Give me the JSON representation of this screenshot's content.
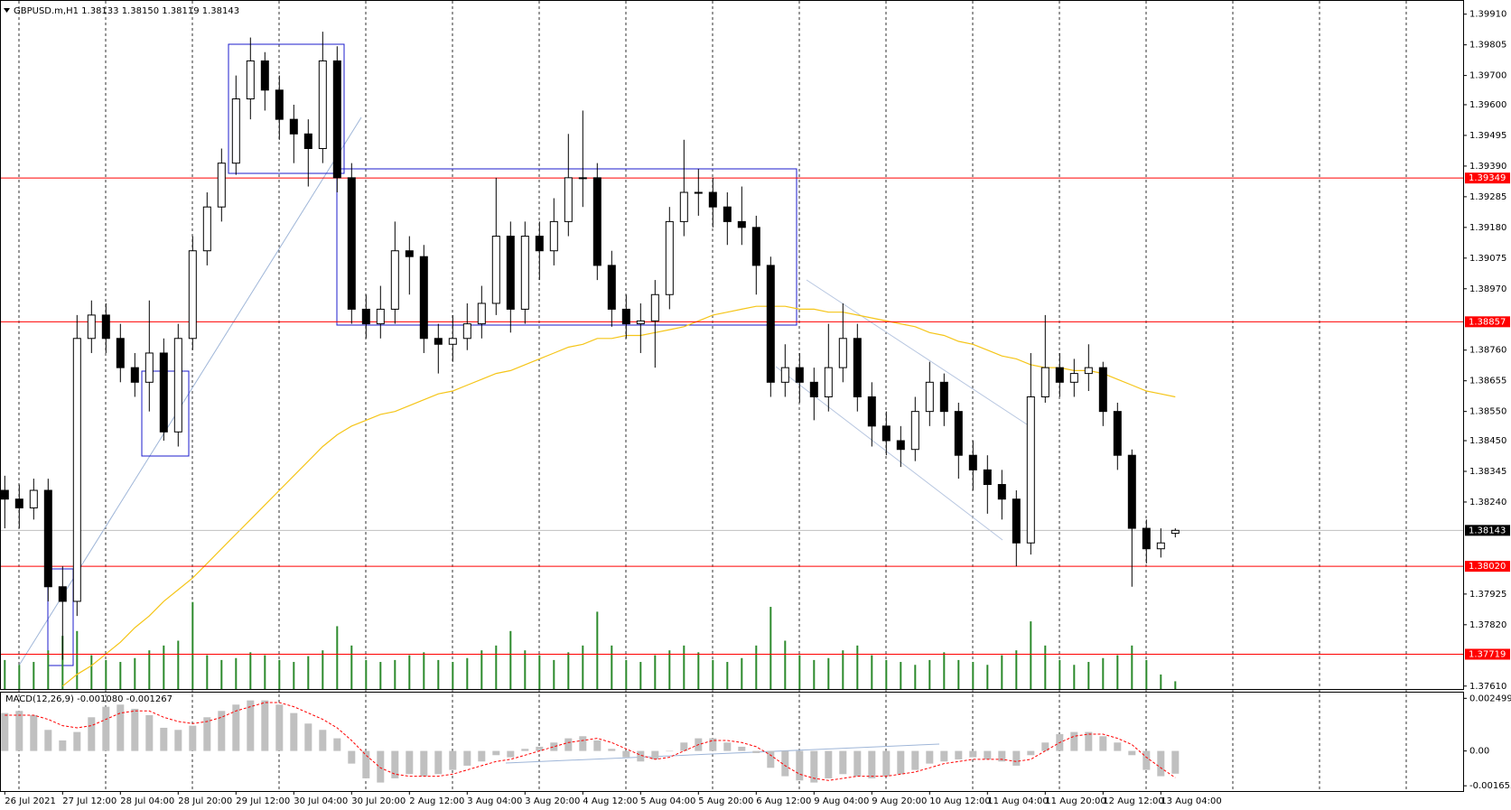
{
  "chart_data": [
    {
      "type": "candlestick",
      "title": "GBPUSD.m,H1  1.38133 1.38150 1.38119 1.38143",
      "ohlc": [
        [
          1.3828,
          1.3833,
          1.3815,
          1.3825
        ],
        [
          1.3825,
          1.383,
          1.3815,
          1.3822
        ],
        [
          1.3822,
          1.3832,
          1.3818,
          1.3828
        ],
        [
          1.3828,
          1.3832,
          1.379,
          1.3795
        ],
        [
          1.3795,
          1.3802,
          1.377,
          1.379
        ],
        [
          1.379,
          1.3888,
          1.3785,
          1.388
        ],
        [
          1.388,
          1.3893,
          1.3875,
          1.3888
        ],
        [
          1.3888,
          1.3892,
          1.3875,
          1.388
        ],
        [
          1.388,
          1.3885,
          1.3865,
          1.387
        ],
        [
          1.387,
          1.3875,
          1.386,
          1.3865
        ],
        [
          1.3865,
          1.3893,
          1.3855,
          1.3875
        ],
        [
          1.3875,
          1.388,
          1.3845,
          1.3848
        ],
        [
          1.3848,
          1.3885,
          1.3843,
          1.388
        ],
        [
          1.388,
          1.3915,
          1.3876,
          1.391
        ],
        [
          1.391,
          1.393,
          1.3905,
          1.3925
        ],
        [
          1.3925,
          1.3945,
          1.392,
          1.394
        ],
        [
          1.394,
          1.397,
          1.3936,
          1.3962
        ],
        [
          1.3962,
          1.3983,
          1.3955,
          1.3975
        ],
        [
          1.3975,
          1.3978,
          1.3958,
          1.3965
        ],
        [
          1.3965,
          1.397,
          1.3948,
          1.3955
        ],
        [
          1.3955,
          1.396,
          1.394,
          1.395
        ],
        [
          1.395,
          1.3955,
          1.3932,
          1.3945
        ],
        [
          1.3945,
          1.3985,
          1.394,
          1.3975
        ],
        [
          1.3975,
          1.398,
          1.393,
          1.3935
        ],
        [
          1.3935,
          1.394,
          1.3885,
          1.389
        ],
        [
          1.389,
          1.3895,
          1.388,
          1.3885
        ],
        [
          1.3885,
          1.3898,
          1.388,
          1.389
        ],
        [
          1.389,
          1.392,
          1.3885,
          1.391
        ],
        [
          1.391,
          1.3915,
          1.3895,
          1.3908
        ],
        [
          1.3908,
          1.3912,
          1.3875,
          1.388
        ],
        [
          1.388,
          1.3885,
          1.3868,
          1.3878
        ],
        [
          1.3878,
          1.3888,
          1.3872,
          1.388
        ],
        [
          1.388,
          1.3892,
          1.3876,
          1.3885
        ],
        [
          1.3885,
          1.3898,
          1.388,
          1.3892
        ],
        [
          1.3892,
          1.3935,
          1.3888,
          1.3915
        ],
        [
          1.3915,
          1.392,
          1.3882,
          1.389
        ],
        [
          1.389,
          1.392,
          1.3885,
          1.3915
        ],
        [
          1.3915,
          1.392,
          1.39,
          1.391
        ],
        [
          1.391,
          1.3928,
          1.3905,
          1.392
        ],
        [
          1.392,
          1.395,
          1.3915,
          1.3935
        ],
        [
          1.3935,
          1.3958,
          1.3925,
          1.3935
        ],
        [
          1.3935,
          1.394,
          1.39,
          1.3905
        ],
        [
          1.3905,
          1.391,
          1.3884,
          1.389
        ],
        [
          1.389,
          1.3895,
          1.388,
          1.3885
        ],
        [
          1.3885,
          1.3892,
          1.3875,
          1.3886
        ],
        [
          1.3886,
          1.39,
          1.387,
          1.3895
        ],
        [
          1.3895,
          1.3925,
          1.389,
          1.392
        ],
        [
          1.392,
          1.3948,
          1.3915,
          1.393
        ],
        [
          1.393,
          1.3938,
          1.3922,
          1.393
        ],
        [
          1.393,
          1.3935,
          1.3918,
          1.3925
        ],
        [
          1.3925,
          1.393,
          1.3912,
          1.392
        ],
        [
          1.392,
          1.3932,
          1.3912,
          1.3918
        ],
        [
          1.3918,
          1.3922,
          1.3895,
          1.3905
        ],
        [
          1.3905,
          1.3908,
          1.386,
          1.3865
        ],
        [
          1.3865,
          1.3878,
          1.386,
          1.387
        ],
        [
          1.387,
          1.3875,
          1.3858,
          1.3865
        ],
        [
          1.3865,
          1.387,
          1.3852,
          1.386
        ],
        [
          1.386,
          1.3885,
          1.3855,
          1.387
        ],
        [
          1.387,
          1.3892,
          1.3865,
          1.388
        ],
        [
          1.388,
          1.3885,
          1.3855,
          1.386
        ],
        [
          1.386,
          1.3865,
          1.3843,
          1.385
        ],
        [
          1.385,
          1.3855,
          1.384,
          1.3845
        ],
        [
          1.3845,
          1.385,
          1.3836,
          1.3842
        ],
        [
          1.3842,
          1.386,
          1.3838,
          1.3855
        ],
        [
          1.3855,
          1.3872,
          1.385,
          1.3865
        ],
        [
          1.3865,
          1.3868,
          1.385,
          1.3855
        ],
        [
          1.3855,
          1.3858,
          1.3832,
          1.384
        ],
        [
          1.384,
          1.3845,
          1.3828,
          1.3835
        ],
        [
          1.3835,
          1.384,
          1.382,
          1.383
        ],
        [
          1.383,
          1.3835,
          1.3818,
          1.3825
        ],
        [
          1.3825,
          1.3828,
          1.3802,
          1.381
        ],
        [
          1.381,
          1.3875,
          1.3806,
          1.386
        ],
        [
          1.386,
          1.3888,
          1.3858,
          1.387
        ],
        [
          1.387,
          1.3875,
          1.386,
          1.3865
        ],
        [
          1.3865,
          1.3873,
          1.386,
          1.3868
        ],
        [
          1.3868,
          1.3878,
          1.3862,
          1.387
        ],
        [
          1.387,
          1.3872,
          1.385,
          1.3855
        ],
        [
          1.3855,
          1.3858,
          1.3835,
          1.384
        ],
        [
          1.384,
          1.3842,
          1.3795,
          1.3815
        ],
        [
          1.3815,
          1.3818,
          1.3803,
          1.3808
        ],
        [
          1.3808,
          1.3815,
          1.3805,
          1.381
        ],
        [
          1.38133,
          1.3815,
          1.38119,
          1.38143
        ]
      ],
      "up_color": "#ffffff",
      "down_color": "#000000",
      "outline_color": "#000000",
      "ma": {
        "color": "#f5c518",
        "values": [
          null,
          null,
          null,
          null,
          1.3761,
          1.3765,
          1.3768,
          1.3772,
          1.3776,
          1.3781,
          1.3785,
          1.379,
          1.3794,
          1.3798,
          1.3803,
          1.3808,
          1.3813,
          1.3818,
          1.3823,
          1.3828,
          1.3833,
          1.3838,
          1.3843,
          1.3847,
          1.385,
          1.3852,
          1.3854,
          1.3855,
          1.3857,
          1.3859,
          1.3861,
          1.3862,
          1.3864,
          1.3866,
          1.3868,
          1.3869,
          1.3871,
          1.3873,
          1.3875,
          1.3877,
          1.3878,
          1.388,
          1.388,
          1.3881,
          1.3881,
          1.3882,
          1.3883,
          1.3884,
          1.3886,
          1.3888,
          1.3889,
          1.389,
          1.3891,
          1.3891,
          1.3891,
          1.389,
          1.389,
          1.3889,
          1.3889,
          1.3888,
          1.3887,
          1.3886,
          1.3885,
          1.3884,
          1.3882,
          1.3881,
          1.3879,
          1.3878,
          1.3876,
          1.3874,
          1.3873,
          1.3871,
          1.387,
          1.387,
          1.3869,
          1.3869,
          1.3868,
          1.3866,
          1.3864,
          1.3862,
          1.3861,
          1.386
        ]
      },
      "volume": {
        "color": "#2e8b2e",
        "values": [
          30,
          25,
          28,
          40,
          55,
          60,
          35,
          30,
          28,
          32,
          40,
          45,
          50,
          90,
          35,
          30,
          32,
          38,
          35,
          30,
          28,
          34,
          40,
          65,
          45,
          30,
          28,
          30,
          35,
          38,
          30,
          28,
          32,
          40,
          45,
          60,
          40,
          35,
          30,
          38,
          45,
          80,
          45,
          30,
          28,
          35,
          40,
          45,
          38,
          30,
          28,
          32,
          45,
          85,
          50,
          35,
          30,
          32,
          40,
          45,
          35,
          30,
          28,
          25,
          30,
          38,
          30,
          28,
          25,
          35,
          40,
          70,
          45,
          30,
          25,
          28,
          32,
          35,
          45,
          30,
          15,
          8
        ]
      },
      "ylim": [
        1.376,
        1.39943
      ],
      "yticks": [
        {
          "value": 1.3991,
          "label": "1.39910"
        },
        1.39805,
        {
          "value": 1.397,
          "label": "1.39700"
        },
        {
          "value": 1.396,
          "label": "1.39600"
        },
        1.39495,
        {
          "value": 1.3939,
          "label": "1.39390"
        },
        1.39285,
        {
          "value": 1.3918,
          "label": "1.39180"
        },
        1.39075,
        {
          "value": 1.3897,
          "label": "1.38970"
        },
        {
          "value": 1.3876,
          "label": "1.38760"
        },
        1.38655,
        {
          "value": 1.3855,
          "label": "1.38550"
        },
        {
          "value": 1.3845,
          "label": "1.38450"
        },
        1.38345,
        {
          "value": 1.3824,
          "label": "1.38240"
        },
        1.37925,
        {
          "value": 1.3782,
          "label": "1.37820"
        },
        {
          "value": 1.3761,
          "label": "1.37610"
        }
      ],
      "price_lines": [
        {
          "value": 1.39349,
          "color": "#ff0000"
        },
        {
          "value": 1.38857,
          "color": "#ff0000"
        },
        {
          "value": 1.3802,
          "label": "1.38020",
          "color": "#ff0000"
        },
        {
          "value": 1.37719,
          "color": "#ff0000"
        },
        {
          "value": 1.38143,
          "color": "#c0c0c0",
          "label_color": "#000000"
        }
      ],
      "xticks": [
        {
          "value": 0,
          "label": "26 Jul 2021"
        },
        {
          "value": 4,
          "label": "27 Jul 12:00"
        },
        {
          "value": 8,
          "label": "28 Jul 04:00"
        },
        {
          "value": 12,
          "label": "28 Jul 20:00"
        },
        {
          "value": 16,
          "label": "29 Jul 12:00"
        },
        {
          "value": 20,
          "label": "30 Jul 04:00"
        },
        {
          "value": 24,
          "label": "30 Jul 20:00"
        },
        {
          "value": 28,
          "label": "2 Aug 12:00"
        },
        {
          "value": 32,
          "label": "3 Aug 04:00"
        },
        {
          "value": 36,
          "label": "3 Aug 20:00"
        },
        {
          "value": 40,
          "label": "4 Aug 12:00"
        },
        {
          "value": 44,
          "label": "5 Aug 04:00"
        },
        {
          "value": 48,
          "label": "5 Aug 20:00"
        },
        {
          "value": 52,
          "label": "6 Aug 12:00"
        },
        {
          "value": 56,
          "label": "9 Aug 04:00"
        },
        {
          "value": 60,
          "label": "9 Aug 20:00"
        },
        {
          "value": 64,
          "label": "10 Aug 12:00"
        },
        {
          "value": 68,
          "label": "11 Aug 04:00"
        },
        {
          "value": 72,
          "label": "11 Aug 20:00"
        },
        {
          "value": 76,
          "label": "12 Aug 12:00"
        },
        {
          "value": 80,
          "label": "13 Aug 04:00"
        }
      ]
    },
    {
      "type": "macd",
      "title": "MACD(12,26,9) -0.001080 -0.001267",
      "histogram": {
        "color": "#c0c0c0",
        "values": [
          0.0018,
          0.0019,
          0.0017,
          0.001,
          0.0005,
          0.0009,
          0.0016,
          0.0021,
          0.0022,
          0.002,
          0.0017,
          0.0011,
          0.001,
          0.0012,
          0.0016,
          0.0019,
          0.0022,
          0.0024,
          0.0024,
          0.0022,
          0.0018,
          0.0013,
          0.001,
          0.0006,
          -0.0006,
          -0.0013,
          -0.0015,
          -0.0013,
          -0.0011,
          -0.0012,
          -0.0011,
          -0.0009,
          -0.0007,
          -0.0005,
          -0.0002,
          -0.0003,
          0.0001,
          0.0002,
          0.0004,
          0.0006,
          0.0007,
          0.0005,
          0.0001,
          -0.0003,
          -0.0005,
          -0.0004,
          0,
          0.0004,
          0.0006,
          0.0006,
          0.0004,
          0.0002,
          -0.0001,
          -0.0008,
          -0.0012,
          -0.0014,
          -0.0015,
          -0.0013,
          -0.0011,
          -0.0012,
          -0.0013,
          -0.0012,
          -0.0011,
          -0.0009,
          -0.0006,
          -0.0005,
          -0.0004,
          -0.0003,
          -0.0004,
          -0.0005,
          -0.0007,
          -0.0002,
          0.0004,
          0.0008,
          0.0009,
          0.0009,
          0.0007,
          0.0004,
          -0.0002,
          -0.0009,
          -0.0012,
          -0.00108
        ]
      },
      "signal": {
        "color": "#ff0000",
        "values": [
          0.0017,
          0.0017,
          0.0017,
          0.0015,
          0.0012,
          0.0011,
          0.0012,
          0.0015,
          0.0018,
          0.0019,
          0.0019,
          0.0016,
          0.0014,
          0.0013,
          0.0014,
          0.0016,
          0.0019,
          0.0021,
          0.0023,
          0.0023,
          0.0021,
          0.0018,
          0.0015,
          0.0011,
          0.0005,
          -0.0002,
          -0.0008,
          -0.0011,
          -0.0012,
          -0.0012,
          -0.0012,
          -0.0011,
          -0.0009,
          -0.0007,
          -0.0005,
          -0.0004,
          -0.0002,
          0,
          0.0002,
          0.0004,
          0.0005,
          0.0006,
          0.0004,
          0.0001,
          -0.0002,
          -0.0004,
          -0.0003,
          0,
          0.0003,
          0.0005,
          0.0005,
          0.0004,
          0.0002,
          -0.0002,
          -0.0007,
          -0.0011,
          -0.0013,
          -0.0014,
          -0.0013,
          -0.0012,
          -0.0012,
          -0.0012,
          -0.0011,
          -0.001,
          -0.0008,
          -0.0006,
          -0.0005,
          -0.0004,
          -0.0004,
          -0.0004,
          -0.0005,
          -0.0004,
          0,
          0.0004,
          0.0007,
          0.0008,
          0.0008,
          0.0006,
          0.0003,
          -0.0003,
          -0.0008,
          -0.001267
        ]
      },
      "ylim": [
        -0.00186,
        0.00277
      ],
      "yticks": [
        0.002499,
        {
          "value": 0,
          "label": "0.00"
        },
        -0.001653
      ]
    }
  ]
}
